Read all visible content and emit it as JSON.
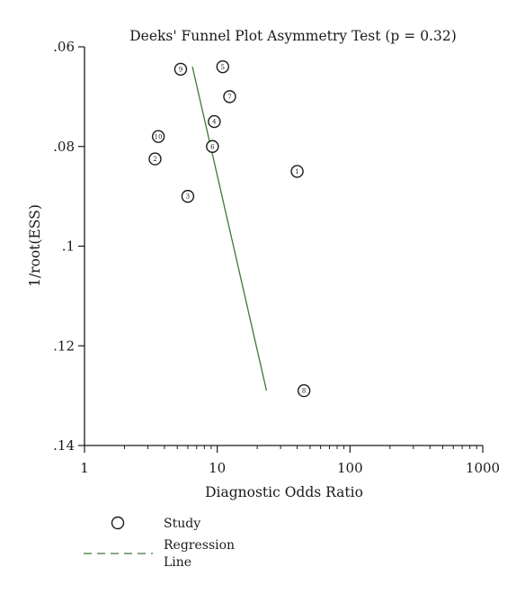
{
  "chart_data": {
    "type": "scatter",
    "title": "Deeks' Funnel Plot Asymmetry Test (p = 0.32)",
    "xlabel": "Diagnostic Odds Ratio",
    "ylabel": "1/root(ESS)",
    "x_scale": "log",
    "y_reversed": true,
    "xlim": [
      1,
      1000
    ],
    "ylim": [
      0.06,
      0.14
    ],
    "x_ticks": [
      1,
      10,
      100,
      1000
    ],
    "x_tick_labels": [
      "1",
      "10",
      "100",
      "1000"
    ],
    "y_ticks": [
      0.06,
      0.08,
      0.1,
      0.12,
      0.14
    ],
    "y_tick_labels": [
      ".06",
      ".08",
      ".1",
      ".12",
      ".14"
    ],
    "grid": false,
    "series": [
      {
        "name": "Study",
        "points": [
          {
            "label": "1",
            "x": 40,
            "y": 0.085
          },
          {
            "label": "2",
            "x": 3.4,
            "y": 0.0825
          },
          {
            "label": "3",
            "x": 6,
            "y": 0.09
          },
          {
            "label": "4",
            "x": 9.5,
            "y": 0.075
          },
          {
            "label": "5",
            "x": 11,
            "y": 0.064
          },
          {
            "label": "6",
            "x": 9.2,
            "y": 0.08
          },
          {
            "label": "7",
            "x": 12.4,
            "y": 0.07
          },
          {
            "label": "8",
            "x": 45,
            "y": 0.129
          },
          {
            "label": "9",
            "x": 5.3,
            "y": 0.0645
          },
          {
            "label": "10",
            "x": 3.6,
            "y": 0.078
          }
        ]
      },
      {
        "name": "Regression Line",
        "style": "dashed",
        "color": "#3a7a34",
        "line": [
          {
            "x": 6.5,
            "y": 0.064
          },
          {
            "x": 23.5,
            "y": 0.129
          }
        ]
      }
    ],
    "legend": {
      "placement": "bottom-left",
      "entries": [
        {
          "label": "Study",
          "marker": "circle"
        },
        {
          "label_line1": "Regression",
          "label_line2": "Line",
          "marker": "dashed-line"
        }
      ]
    },
    "colors": {
      "axis": "#1a1a1a",
      "regression": "#3a7a34",
      "marker": "#1a1a1a"
    }
  }
}
